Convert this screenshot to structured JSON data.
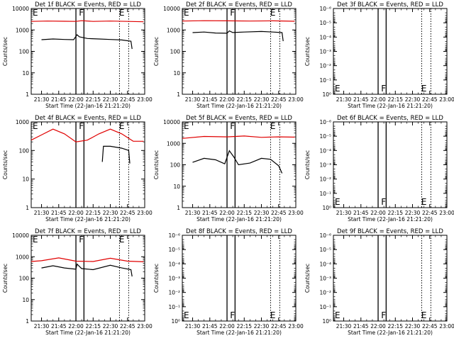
{
  "page": {
    "title": ""
  },
  "colors": {
    "events": "#000000",
    "lld": "#e00000",
    "background": "#ffffff",
    "axis": "#000000"
  },
  "x_ticks": [
    "21:30",
    "21:45",
    "22:00",
    "22:15",
    "22:30",
    "22:45",
    "23:00"
  ],
  "xlabel": "Start Time (22-Jan-16 21:21:20)",
  "ylabel": "Counts/sec",
  "chart_data": [
    {
      "id": "det1",
      "type": "line",
      "title": "Det 1f BLACK = Events, RED = LLD",
      "y_scale": "log",
      "ylim": [
        1,
        10000
      ],
      "y_ticks": [
        "1",
        "10",
        "100",
        "1000",
        "10000"
      ],
      "xlim": [
        "21:21",
        "23:00"
      ],
      "markers": [
        {
          "x": "21:21",
          "label": "E"
        },
        {
          "x": "22:02",
          "label": "F"
        },
        {
          "x": "22:37",
          "label": "E"
        }
      ],
      "solid_vlines": [
        "22:00",
        "22:07"
      ],
      "dotted_vlines": [
        "22:38",
        "22:46"
      ],
      "series": [
        {
          "name": "Events",
          "color": "#000000",
          "segments": [
            [
              [
                "21:30",
                350
              ],
              [
                "21:40",
                380
              ],
              [
                "21:50",
                360
              ],
              [
                "21:58",
                350
              ],
              [
                "22:01",
                600
              ],
              [
                "22:03",
                480
              ],
              [
                "22:10",
                400
              ],
              [
                "22:20",
                380
              ],
              [
                "22:30",
                360
              ],
              [
                "22:40",
                340
              ],
              [
                "22:48",
                300
              ],
              [
                "22:49",
                130
              ]
            ]
          ]
        },
        {
          "name": "LLD",
          "color": "#e00000",
          "segments": [
            [
              [
                "21:21",
                2500
              ],
              [
                "21:35",
                2600
              ],
              [
                "21:50",
                2550
              ],
              [
                "22:00",
                2500
              ],
              [
                "22:05",
                2700
              ],
              [
                "22:15",
                2500
              ],
              [
                "22:30",
                2600
              ],
              [
                "22:45",
                2500
              ],
              [
                "22:59",
                2400
              ]
            ]
          ]
        }
      ]
    },
    {
      "id": "det2",
      "type": "line",
      "title": "Det 2f BLACK = Events, RED = LLD",
      "y_scale": "log",
      "ylim": [
        1,
        10000
      ],
      "y_ticks": [
        "1",
        "10",
        "100",
        "1000",
        "10000"
      ],
      "xlim": [
        "21:21",
        "23:00"
      ],
      "markers": [
        {
          "x": "21:21",
          "label": "E"
        },
        {
          "x": "22:02",
          "label": "F"
        },
        {
          "x": "22:37",
          "label": "E"
        }
      ],
      "solid_vlines": [
        "22:00",
        "22:07"
      ],
      "dotted_vlines": [
        "22:38",
        "22:46"
      ],
      "series": [
        {
          "name": "Events",
          "color": "#000000",
          "segments": [
            [
              [
                "21:30",
                750
              ],
              [
                "21:40",
                800
              ],
              [
                "21:50",
                720
              ],
              [
                "22:00",
                700
              ],
              [
                "22:02",
                900
              ],
              [
                "22:05",
                760
              ],
              [
                "22:15",
                800
              ],
              [
                "22:30",
                850
              ],
              [
                "22:40",
                800
              ],
              [
                "22:48",
                750
              ],
              [
                "22:49",
                300
              ]
            ]
          ]
        },
        {
          "name": "LLD",
          "color": "#e00000",
          "segments": [
            [
              [
                "21:21",
                2600
              ],
              [
                "21:40",
                2700
              ],
              [
                "22:00",
                2650
              ],
              [
                "22:20",
                2600
              ],
              [
                "22:40",
                2650
              ],
              [
                "22:59",
                2550
              ]
            ]
          ]
        }
      ]
    },
    {
      "id": "det3",
      "type": "line",
      "title": "Det 3f BLACK = Events, RED = LLD",
      "y_scale": "log",
      "ylim": [
        1,
        1e-06
      ],
      "y_ticks": [
        "10⁰",
        "10⁻¹",
        "10⁻²",
        "10⁻³",
        "10⁻⁴",
        "10⁻⁵",
        "10⁻⁶"
      ],
      "xlim": [
        "21:21",
        "23:00"
      ],
      "markers": [
        {
          "x": "21:21",
          "label": "E"
        },
        {
          "x": "22:02",
          "label": "F"
        },
        {
          "x": "22:37",
          "label": "E"
        }
      ],
      "solid_vlines": [
        "22:00",
        "22:07"
      ],
      "dotted_vlines": [
        "22:38",
        "22:46"
      ],
      "series": []
    },
    {
      "id": "det4",
      "type": "line",
      "title": "Det 4f BLACK = Events, RED = LLD",
      "y_scale": "log",
      "ylim": [
        1,
        1000
      ],
      "y_ticks": [
        "1",
        "10",
        "100",
        "1000"
      ],
      "xlim": [
        "21:21",
        "23:00"
      ],
      "markers": [
        {
          "x": "21:21",
          "label": "E"
        },
        {
          "x": "22:02",
          "label": "F"
        },
        {
          "x": "22:37",
          "label": "E"
        }
      ],
      "solid_vlines": [
        "22:00",
        "22:07"
      ],
      "dotted_vlines": [
        "22:38",
        "22:46"
      ],
      "series": [
        {
          "name": "Events",
          "color": "#000000",
          "segments": [
            [
              [
                "22:23",
                40
              ],
              [
                "22:24",
                140
              ],
              [
                "22:30",
                140
              ],
              [
                "22:40",
                120
              ],
              [
                "22:46",
                100
              ],
              [
                "22:47",
                35
              ]
            ]
          ]
        },
        {
          "name": "LLD",
          "color": "#e00000",
          "segments": [
            [
              [
                "21:21",
                230
              ],
              [
                "21:30",
                350
              ],
              [
                "21:40",
                560
              ],
              [
                "21:50",
                380
              ],
              [
                "22:00",
                200
              ],
              [
                "22:10",
                230
              ],
              [
                "22:20",
                380
              ],
              [
                "22:30",
                560
              ],
              [
                "22:40",
                380
              ],
              [
                "22:50",
                210
              ],
              [
                "22:59",
                210
              ]
            ]
          ]
        }
      ]
    },
    {
      "id": "det5",
      "type": "line",
      "title": "Det 5f BLACK = Events, RED = LLD",
      "y_scale": "log",
      "ylim": [
        1,
        10000
      ],
      "y_ticks": [
        "1",
        "10",
        "100",
        "1000",
        "10000"
      ],
      "xlim": [
        "21:21",
        "23:00"
      ],
      "markers": [
        {
          "x": "21:21",
          "label": "E"
        },
        {
          "x": "22:02",
          "label": "F"
        },
        {
          "x": "22:37",
          "label": "E"
        }
      ],
      "solid_vlines": [
        "22:00",
        "22:07"
      ],
      "dotted_vlines": [
        "22:38",
        "22:46"
      ],
      "series": [
        {
          "name": "Events",
          "color": "#000000",
          "segments": [
            [
              [
                "21:30",
                130
              ],
              [
                "21:40",
                200
              ],
              [
                "21:50",
                170
              ],
              [
                "21:58",
                110
              ],
              [
                "22:02",
                450
              ],
              [
                "22:06",
                230
              ],
              [
                "22:10",
                100
              ],
              [
                "22:20",
                120
              ],
              [
                "22:30",
                200
              ],
              [
                "22:38",
                180
              ],
              [
                "22:45",
                90
              ],
              [
                "22:48",
                40
              ]
            ]
          ]
        },
        {
          "name": "LLD",
          "color": "#e00000",
          "segments": [
            [
              [
                "21:21",
                1700
              ],
              [
                "21:40",
                2100
              ],
              [
                "22:00",
                2000
              ],
              [
                "22:15",
                2200
              ],
              [
                "22:30",
                1900
              ],
              [
                "22:45",
                2000
              ],
              [
                "22:59",
                1950
              ]
            ]
          ]
        }
      ]
    },
    {
      "id": "det6",
      "type": "line",
      "title": "Det 6f BLACK = Events, RED = LLD",
      "y_scale": "log",
      "ylim": [
        1,
        1e-06
      ],
      "y_ticks": [
        "10⁰",
        "10⁻¹",
        "10⁻²",
        "10⁻³",
        "10⁻⁴",
        "10⁻⁵",
        "10⁻⁶"
      ],
      "xlim": [
        "21:21",
        "23:00"
      ],
      "markers": [
        {
          "x": "21:21",
          "label": "E"
        },
        {
          "x": "22:02",
          "label": "F"
        },
        {
          "x": "22:37",
          "label": "E"
        }
      ],
      "solid_vlines": [
        "22:00",
        "22:07"
      ],
      "dotted_vlines": [
        "22:38",
        "22:46"
      ],
      "series": []
    },
    {
      "id": "det7",
      "type": "line",
      "title": "Det 7f BLACK = Events, RED = LLD",
      "y_scale": "log",
      "ylim": [
        1,
        10000
      ],
      "y_ticks": [
        "1",
        "10",
        "100",
        "1000",
        "10000"
      ],
      "xlim": [
        "21:21",
        "23:00"
      ],
      "markers": [
        {
          "x": "21:21",
          "label": "E"
        },
        {
          "x": "22:02",
          "label": "F"
        },
        {
          "x": "22:37",
          "label": "E"
        }
      ],
      "solid_vlines": [
        "22:00",
        "22:07"
      ],
      "dotted_vlines": [
        "22:38",
        "22:46"
      ],
      "series": [
        {
          "name": "Events",
          "color": "#000000",
          "segments": [
            [
              [
                "21:30",
                300
              ],
              [
                "21:40",
                380
              ],
              [
                "21:50",
                300
              ],
              [
                "22:00",
                260
              ],
              [
                "22:01",
                450
              ],
              [
                "22:05",
                280
              ],
              [
                "22:15",
                250
              ],
              [
                "22:30",
                400
              ],
              [
                "22:40",
                300
              ],
              [
                "22:48",
                250
              ],
              [
                "22:49",
                120
              ]
            ]
          ]
        },
        {
          "name": "LLD",
          "color": "#e00000",
          "segments": [
            [
              [
                "21:21",
                600
              ],
              [
                "21:30",
                650
              ],
              [
                "21:45",
                880
              ],
              [
                "22:00",
                620
              ],
              [
                "22:15",
                600
              ],
              [
                "22:30",
                850
              ],
              [
                "22:45",
                620
              ],
              [
                "22:59",
                580
              ]
            ]
          ]
        }
      ]
    },
    {
      "id": "det8",
      "type": "line",
      "title": "Det 8f BLACK = Events, RED = LLD",
      "y_scale": "log",
      "ylim": [
        1,
        1e-06
      ],
      "y_ticks": [
        "10⁰",
        "10⁻¹",
        "10⁻²",
        "10⁻³",
        "10⁻⁴",
        "10⁻⁵",
        "10⁻⁶"
      ],
      "xlim": [
        "21:21",
        "23:00"
      ],
      "markers": [
        {
          "x": "21:21",
          "label": "E"
        },
        {
          "x": "22:02",
          "label": "F"
        },
        {
          "x": "22:37",
          "label": "E"
        }
      ],
      "solid_vlines": [
        "22:00",
        "22:07"
      ],
      "dotted_vlines": [
        "22:38",
        "22:46"
      ],
      "series": []
    },
    {
      "id": "det9",
      "type": "line",
      "title": "Det 9f BLACK = Events, RED = LLD",
      "y_scale": "log",
      "ylim": [
        1,
        1e-06
      ],
      "y_ticks": [
        "10⁰",
        "10⁻¹",
        "10⁻²",
        "10⁻³",
        "10⁻⁴",
        "10⁻⁵",
        "10⁻⁶"
      ],
      "xlim": [
        "21:21",
        "23:00"
      ],
      "markers": [
        {
          "x": "21:21",
          "label": "E"
        },
        {
          "x": "22:02",
          "label": "F"
        },
        {
          "x": "22:37",
          "label": "E"
        }
      ],
      "solid_vlines": [
        "22:00",
        "22:07"
      ],
      "dotted_vlines": [
        "22:38",
        "22:46"
      ],
      "series": []
    }
  ]
}
